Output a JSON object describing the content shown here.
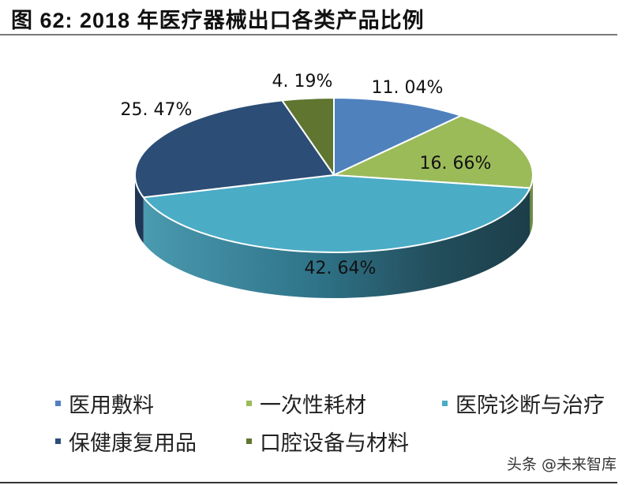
{
  "header": {
    "title": "图 62:  2018 年医疗器械出口各类产品比例"
  },
  "chart_data": {
    "type": "pie",
    "title": "图 62: 2018 年医疗器械出口各类产品比例",
    "style": "3d",
    "start_angle": "12 o'clock, clockwise",
    "legend_position": "bottom",
    "slices": [
      {
        "label": "医用敷料",
        "value": 11.04,
        "display": "11. 04%",
        "color": "#4F81BD",
        "side": "#3A6190"
      },
      {
        "label": "一次性耗材",
        "value": 16.66,
        "display": "16. 66%",
        "color": "#9BBB59",
        "side": "#738C40"
      },
      {
        "label": "医院诊断与治疗",
        "value": 42.64,
        "display": "42. 64%",
        "color": "#4BACC6",
        "side": "#2F7F97"
      },
      {
        "label": "保健康复用品",
        "value": 25.47,
        "display": "25. 47%",
        "color": "#2C4D75",
        "side": "#1E3756"
      },
      {
        "label": "口腔设备与材料",
        "value": 4.19,
        "display": "4. 19%",
        "color": "#5F7530",
        "side": "#465624"
      }
    ]
  },
  "legend": {
    "items": [
      {
        "label": "医用敷料",
        "color": "#4F81BD"
      },
      {
        "label": "一次性耗材",
        "color": "#9BBB59"
      },
      {
        "label": "医院诊断与治疗",
        "color": "#4BACC6"
      },
      {
        "label": "保健康复用品",
        "color": "#2C4D75"
      },
      {
        "label": "口腔设备与材料",
        "color": "#5F7530"
      }
    ]
  },
  "watermark": {
    "text": "头条 @未来智库"
  }
}
